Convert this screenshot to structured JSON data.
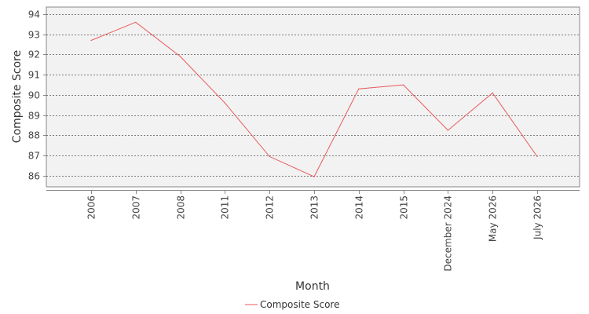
{
  "chart_data": {
    "type": "line",
    "title": "",
    "xlabel": "Month",
    "ylabel": "Composite Score",
    "categories": [
      "2006",
      "2007",
      "2008",
      "2011",
      "2012",
      "2013",
      "2014",
      "2015",
      "December 2024",
      "May 2026",
      "July 2026"
    ],
    "series": [
      {
        "name": "Composite Score",
        "color": "#e8595a",
        "values": [
          92.7,
          93.6,
          91.9,
          89.6,
          86.95,
          85.95,
          90.3,
          90.5,
          88.25,
          90.1,
          86.95
        ]
      }
    ],
    "yticks": [
      86,
      87,
      88,
      89,
      90,
      91,
      92,
      93,
      94
    ],
    "ylim": [
      85.45,
      94.35
    ],
    "grid": true,
    "legend": "bottom-center",
    "plot_background": "#f2f2f2"
  }
}
